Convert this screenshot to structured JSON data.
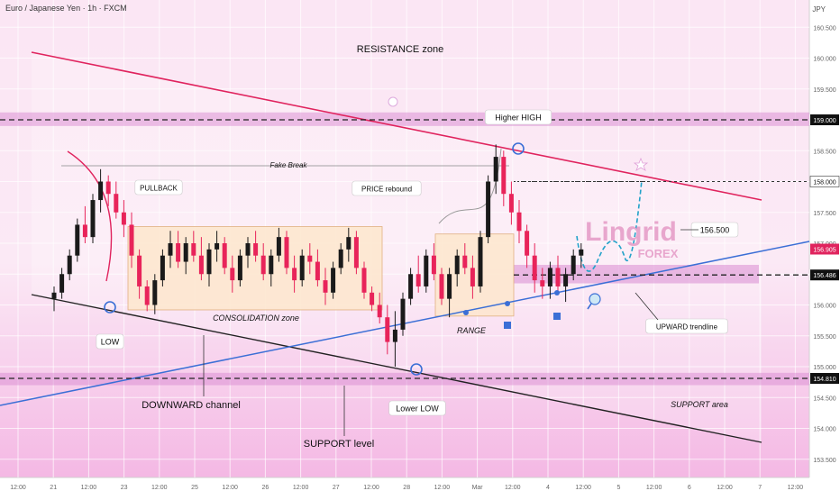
{
  "header": {
    "symbol_title": "Euro / Japanese Yen · 1h · FXCM",
    "currency": "JPY"
  },
  "chart_data": {
    "type": "candlestick",
    "symbol": "Euro / Japanese Yen",
    "timeframe": "1h",
    "source": "FXCM",
    "y_axis": {
      "ticks": [
        160.5,
        160.0,
        159.5,
        159.0,
        158.5,
        158.0,
        157.5,
        157.0,
        156.5,
        156.0,
        155.5,
        155.0,
        154.5,
        154.0,
        153.5
      ],
      "tick_labels": [
        "160.500",
        "160.000",
        "159.500",
        "159.000",
        "158.500",
        "158.000",
        "157.500",
        "157.000",
        "156.500",
        "156.000",
        "155.500",
        "155.000",
        "154.500",
        "154.000",
        "153.500"
      ],
      "range": [
        153.2,
        160.75
      ]
    },
    "x_axis": {
      "tick_labels": [
        "12:00",
        "21",
        "12:00",
        "23",
        "12:00",
        "25",
        "12:00",
        "26",
        "12:00",
        "27",
        "12:00",
        "28",
        "12:00",
        "Mar",
        "12:00",
        "4",
        "12:00",
        "5",
        "12:00",
        "6",
        "12:00",
        "7",
        "12:00"
      ]
    },
    "price_labels": [
      {
        "value": 159.0,
        "text": "159.000",
        "style": "dark"
      },
      {
        "value": 158.0,
        "text": "158.000",
        "style": "light"
      },
      {
        "value": 156.905,
        "text": "156.905",
        "style": "red"
      },
      {
        "value": 156.486,
        "text": "156.486",
        "style": "dark"
      },
      {
        "value": 154.81,
        "text": "154.810",
        "style": "dark"
      }
    ],
    "levels": [
      {
        "name": "resistance-line",
        "value": 159.0
      },
      {
        "name": "support-line",
        "value": 154.81
      },
      {
        "name": "key-level",
        "value": 156.486
      },
      {
        "name": "target-level",
        "value": 158.0
      }
    ],
    "annotations": {
      "resistance_zone": "RESISTANCE zone",
      "higher_high": "Higher HIGH",
      "fake_break": "Fake Break",
      "pullback": "PULLBACK",
      "price_rebound": "PRICE rebound",
      "consolidation_zone": "CONSOLIDATION zone",
      "low": "LOW",
      "range": "RANGE",
      "target": "156.500",
      "upward_trendline": "UPWARD trendline",
      "downward_channel": "DOWNWARD channel",
      "lower_low": "Lower LOW",
      "support_area": "SUPPORT area",
      "support_level": "SUPPORT level"
    },
    "watermark": {
      "brand": "Lingrid",
      "sub": "FOREX"
    },
    "candles": [
      [
        156.1,
        156.3,
        155.9,
        156.2
      ],
      [
        156.2,
        156.6,
        156.1,
        156.5
      ],
      [
        156.5,
        156.9,
        156.4,
        156.8
      ],
      [
        156.8,
        157.4,
        156.7,
        157.3
      ],
      [
        157.3,
        157.6,
        157.0,
        157.1
      ],
      [
        157.1,
        157.8,
        157.0,
        157.7
      ],
      [
        157.7,
        158.2,
        157.5,
        158.0
      ],
      [
        158.0,
        158.1,
        157.6,
        157.8
      ],
      [
        157.8,
        158.0,
        157.4,
        157.5
      ],
      [
        157.5,
        157.7,
        157.1,
        157.3
      ],
      [
        157.3,
        157.5,
        156.6,
        156.8
      ],
      [
        156.8,
        156.9,
        156.1,
        156.3
      ],
      [
        156.3,
        156.4,
        155.9,
        156.0
      ],
      [
        156.0,
        156.5,
        155.85,
        156.4
      ],
      [
        156.4,
        156.9,
        156.3,
        156.8
      ],
      [
        156.8,
        157.2,
        156.6,
        157.0
      ],
      [
        157.0,
        157.2,
        156.6,
        156.7
      ],
      [
        156.7,
        157.1,
        156.5,
        157.0
      ],
      [
        157.0,
        157.2,
        156.7,
        156.8
      ],
      [
        156.8,
        157.1,
        156.4,
        156.5
      ],
      [
        156.5,
        157.0,
        156.3,
        156.9
      ],
      [
        156.9,
        157.2,
        156.7,
        157.0
      ],
      [
        157.0,
        157.1,
        156.5,
        156.6
      ],
      [
        156.6,
        156.8,
        156.2,
        156.4
      ],
      [
        156.4,
        156.9,
        156.3,
        156.8
      ],
      [
        156.8,
        157.1,
        156.6,
        157.0
      ],
      [
        157.0,
        157.2,
        156.7,
        156.8
      ],
      [
        156.8,
        157.0,
        156.4,
        156.5
      ],
      [
        156.5,
        156.9,
        156.3,
        156.8
      ],
      [
        156.8,
        157.25,
        156.7,
        157.1
      ],
      [
        157.1,
        157.2,
        156.5,
        156.6
      ],
      [
        156.6,
        156.8,
        156.2,
        156.4
      ],
      [
        156.4,
        156.9,
        156.3,
        156.8
      ],
      [
        156.8,
        157.0,
        156.5,
        156.7
      ],
      [
        156.7,
        156.9,
        156.3,
        156.4
      ],
      [
        156.4,
        156.6,
        156.0,
        156.2
      ],
      [
        156.2,
        156.7,
        156.1,
        156.6
      ],
      [
        156.6,
        157.0,
        156.5,
        156.9
      ],
      [
        156.9,
        157.25,
        156.7,
        157.1
      ],
      [
        157.1,
        157.2,
        156.5,
        156.6
      ],
      [
        156.6,
        156.7,
        156.1,
        156.2
      ],
      [
        156.2,
        156.3,
        155.9,
        156.0
      ],
      [
        156.0,
        156.2,
        155.7,
        155.8
      ],
      [
        155.8,
        156.0,
        155.2,
        155.4
      ],
      [
        155.4,
        155.9,
        155.0,
        155.6
      ],
      [
        155.6,
        156.2,
        155.5,
        156.1
      ],
      [
        156.1,
        156.6,
        156.0,
        156.5
      ],
      [
        156.5,
        156.8,
        156.2,
        156.3
      ],
      [
        156.3,
        156.9,
        156.2,
        156.8
      ],
      [
        156.8,
        157.0,
        156.4,
        156.5
      ],
      [
        156.5,
        156.6,
        156.0,
        156.1
      ],
      [
        156.1,
        156.6,
        155.8,
        156.5
      ],
      [
        156.5,
        156.9,
        156.3,
        156.8
      ],
      [
        156.8,
        157.0,
        156.5,
        156.6
      ],
      [
        156.6,
        156.8,
        156.1,
        156.3
      ],
      [
        156.3,
        157.2,
        156.2,
        157.1
      ],
      [
        157.1,
        158.1,
        157.0,
        158.0
      ],
      [
        158.0,
        158.6,
        157.8,
        158.4
      ],
      [
        158.4,
        158.5,
        157.6,
        157.8
      ],
      [
        157.8,
        158.0,
        157.3,
        157.5
      ],
      [
        157.5,
        157.7,
        157.0,
        157.2
      ],
      [
        157.2,
        157.3,
        156.6,
        156.8
      ],
      [
        156.8,
        157.0,
        156.2,
        156.4
      ],
      [
        156.4,
        156.6,
        156.1,
        156.3
      ],
      [
        156.3,
        156.7,
        156.1,
        156.6
      ],
      [
        156.6,
        156.8,
        156.2,
        156.3
      ],
      [
        156.3,
        156.6,
        156.05,
        156.5
      ],
      [
        156.5,
        156.9,
        156.4,
        156.8
      ],
      [
        156.8,
        157.0,
        156.6,
        156.9
      ]
    ]
  }
}
